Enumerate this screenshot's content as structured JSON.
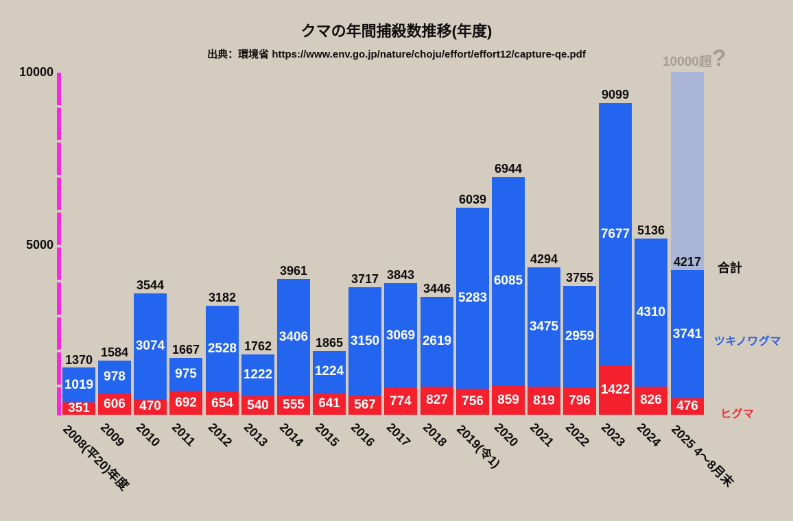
{
  "title": "クマの年間捕殺数推移(年度)",
  "subtitle": "出典：環境省 https://www.env.go.jp/nature/choju/effort/effort12/capture-qe.pdf",
  "y_axis": {
    "tick_labels": [
      "10000",
      "5000"
    ],
    "max": 10000
  },
  "annotations": {
    "over_label": "10000超",
    "question_mark": "?"
  },
  "legend": {
    "total": "合計",
    "blue": "ツキノワグマ",
    "red": "ヒグマ"
  },
  "colors": {
    "background": "#d5ccc0",
    "bar_blue": "#2465f0",
    "bar_red": "#f4202d",
    "axis_magenta": "#f928dd",
    "projection_slate": "#a9b6d8",
    "annotation_gray": "#a59d93",
    "legend_blue": "#2c60d8",
    "legend_red": "#ee2f3a",
    "text_black": "#0d0d0d",
    "segment_label_white": "#ffffff"
  },
  "chart_data": {
    "type": "bar",
    "stacked": true,
    "title": "クマの年間捕殺数推移(年度)",
    "source": "出典：環境省 https://www.env.go.jp/nature/choju/effort/effort12/capture-qe.pdf",
    "ylim": [
      0,
      10000
    ],
    "y_ticks": [
      10000,
      5000
    ],
    "grid": false,
    "legend_position": "right",
    "categories": [
      "2008(平20)年度",
      "2009",
      "2010",
      "2011",
      "2012",
      "2013",
      "2014",
      "2015",
      "2016",
      "2017",
      "2018",
      "2019(令1)",
      "2020",
      "2021",
      "2022",
      "2023",
      "2024",
      "2025 4〜8月末"
    ],
    "series": [
      {
        "name": "ヒグマ",
        "color": "#f4202d",
        "values": [
          351,
          606,
          470,
          692,
          654,
          540,
          555,
          641,
          567,
          774,
          827,
          756,
          859,
          819,
          796,
          1422,
          826,
          476
        ]
      },
      {
        "name": "ツキノワグマ",
        "color": "#2465f0",
        "values": [
          1019,
          978,
          3074,
          975,
          2528,
          1222,
          3406,
          1224,
          3150,
          3069,
          2619,
          5283,
          6085,
          3475,
          2959,
          7677,
          4310,
          3741
        ]
      }
    ],
    "totals": [
      1370,
      1584,
      3544,
      1667,
      3182,
      1762,
      3961,
      1865,
      3717,
      3843,
      3446,
      6039,
      6944,
      4294,
      3755,
      9099,
      5136,
      4217
    ],
    "projection": {
      "bar_index": 17,
      "from": 4217,
      "to": 10000,
      "label": "10000超?"
    }
  }
}
